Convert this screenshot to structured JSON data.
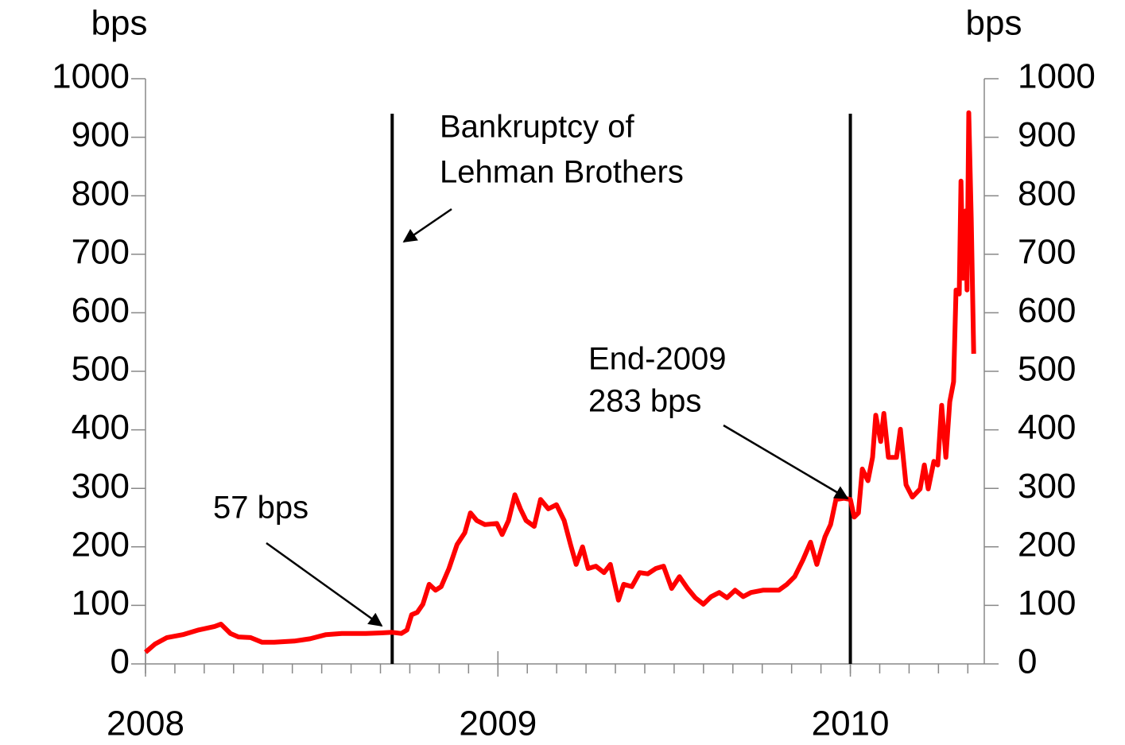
{
  "chart_data": {
    "type": "line",
    "ylabel": "bps",
    "y2label": "bps",
    "color": "#ff0000",
    "x": [
      2008.0,
      2008.027,
      2008.061,
      2008.106,
      2008.151,
      2008.196,
      2008.214,
      2008.241,
      2008.264,
      2008.298,
      2008.331,
      2008.365,
      2008.422,
      2008.467,
      2008.512,
      2008.557,
      2008.625,
      2008.67,
      2008.699,
      2008.726,
      2008.742,
      2008.755,
      2008.771,
      2008.787,
      2008.805,
      2008.823,
      2008.839,
      2008.861,
      2008.884,
      2008.906,
      2008.922,
      2008.94,
      2008.963,
      2008.997,
      2009.012,
      2009.03,
      2009.048,
      2009.064,
      2009.08,
      2009.103,
      2009.121,
      2009.143,
      2009.166,
      2009.188,
      2009.206,
      2009.222,
      2009.24,
      2009.256,
      2009.278,
      2009.301,
      2009.319,
      2009.342,
      2009.357,
      2009.38,
      2009.402,
      2009.425,
      2009.448,
      2009.47,
      2009.493,
      2009.515,
      2009.538,
      2009.56,
      2009.583,
      2009.605,
      2009.628,
      2009.65,
      2009.673,
      2009.696,
      2009.718,
      2009.752,
      2009.797,
      2009.82,
      2009.842,
      2009.865,
      2009.887,
      2009.905,
      2009.928,
      2009.944,
      2009.959,
      2009.982,
      2010.0,
      2010.011,
      2010.023,
      2010.034,
      2010.05,
      2010.063,
      2010.072,
      2010.086,
      2010.095,
      2010.108,
      2010.131,
      2010.142,
      2010.158,
      2010.176,
      2010.198,
      2010.21,
      2010.221,
      2010.237,
      2010.248,
      2010.259,
      2010.271,
      2010.282,
      2010.293,
      2010.3,
      2010.309,
      2010.314,
      2010.32,
      2010.327,
      2010.331,
      2010.336,
      2010.343,
      2010.35
    ],
    "values": [
      20,
      34,
      45,
      50,
      58,
      64,
      68,
      52,
      46,
      45,
      37,
      37,
      39,
      43,
      50,
      52,
      52,
      53,
      54,
      52,
      58,
      84,
      88,
      102,
      136,
      126,
      132,
      163,
      204,
      224,
      258,
      245,
      238,
      240,
      221,
      245,
      289,
      265,
      245,
      235,
      281,
      265,
      272,
      245,
      204,
      170,
      200,
      163,
      167,
      156,
      170,
      109,
      136,
      132,
      156,
      154,
      163,
      167,
      129,
      149,
      129,
      113,
      102,
      115,
      122,
      113,
      126,
      115,
      122,
      126,
      126,
      136,
      149,
      177,
      208,
      170,
      217,
      238,
      281,
      283,
      281,
      251,
      258,
      333,
      313,
      353,
      425,
      380,
      428,
      353,
      353,
      401,
      306,
      285,
      299,
      340,
      299,
      346,
      340,
      442,
      353,
      448,
      482,
      639,
      632,
      825,
      659,
      774,
      639,
      942,
      761,
      530
    ],
    "xlim": [
      2008,
      2010.38
    ],
    "xticks": [
      2008,
      2009,
      2010
    ],
    "ylim": [
      0,
      1000
    ],
    "yticks": [
      0,
      100,
      200,
      300,
      400,
      500,
      600,
      700,
      800,
      900,
      1000
    ],
    "y2lim": [
      0,
      1000
    ],
    "y2ticks": [
      0,
      100,
      200,
      300,
      400,
      500,
      600,
      700,
      800,
      900,
      1000
    ],
    "vlines": [
      2008.7,
      2010
    ],
    "annotations": [
      {
        "text": [
          "Bankruptcy of",
          "Lehman Brothers"
        ]
      },
      {
        "text": [
          "End-2009",
          "283 bps"
        ]
      },
      {
        "text": [
          "57 bps"
        ]
      }
    ]
  }
}
